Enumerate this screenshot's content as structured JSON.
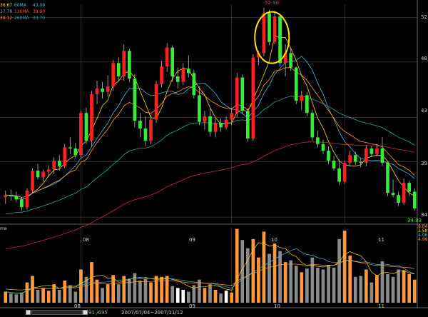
{
  "legend": {
    "price": [
      {
        "value": "36.67",
        "label": "60MA",
        "ma_value": "43.08",
        "color": "#ffd700",
        "ma_color": "#4fb3d9"
      },
      {
        "value": "37.78",
        "label": "130MA",
        "ma_value": "39.90",
        "color": "#4fb3d9",
        "ma_color": "#ff4040"
      },
      {
        "value": "39.12",
        "label": "260MA",
        "ma_value": "30.70",
        "color": "#ff9933",
        "ma_color": "#2aa0a0"
      }
    ]
  },
  "volume_label": "me",
  "volume_legend": [
    "8.04",
    "3.58",
    "4.06",
    "4.98"
  ],
  "peak_label": "52.90",
  "low_label": "34.83",
  "y_ticks": [
    {
      "value": 52,
      "text": "52"
    },
    {
      "value": 48,
      "text": "48"
    },
    {
      "value": 43,
      "text": "43"
    },
    {
      "value": 39,
      "text": "39"
    },
    {
      "value": 34,
      "text": "34"
    }
  ],
  "x_ticks": [
    {
      "text": "08"
    },
    {
      "text": "09"
    },
    {
      "text": "10"
    },
    {
      "text": "11"
    }
  ],
  "status": {
    "count": "91 /695",
    "range": "2007/07/04~2007/11/12"
  },
  "colors": {
    "up": "#ff2020",
    "down": "#33ee33",
    "vol_up": "#ff9a3c",
    "vol_down": "#8a8a8a",
    "vol_flat": "#ffffff",
    "ma5": "#ffd700",
    "ma20": "#4fb3d9",
    "ma60": "#ff9933",
    "ma130": "#2aa0a0",
    "ma260": "#c03030",
    "highlight": "#ffe600",
    "grid": "#444444"
  },
  "chart_data": {
    "type": "candlestick",
    "y_range": [
      33.5,
      53.2
    ],
    "candles": [
      [
        35.8,
        36.4,
        35.2,
        36.0
      ],
      [
        36.0,
        36.5,
        35.5,
        35.9
      ],
      [
        35.9,
        36.3,
        35.4,
        35.6
      ],
      [
        35.6,
        35.8,
        34.6,
        34.9
      ],
      [
        34.9,
        36.6,
        34.7,
        36.4
      ],
      [
        36.4,
        38.4,
        36.2,
        38.2
      ],
      [
        38.2,
        38.8,
        37.4,
        37.6
      ],
      [
        37.6,
        38.3,
        37.2,
        38.1
      ],
      [
        38.1,
        38.7,
        37.6,
        38.3
      ],
      [
        38.3,
        39.4,
        37.9,
        39.1
      ],
      [
        39.1,
        39.6,
        38.2,
        38.6
      ],
      [
        38.6,
        40.6,
        38.4,
        40.3
      ],
      [
        40.3,
        41.2,
        39.7,
        40.2
      ],
      [
        40.2,
        40.7,
        39.3,
        39.6
      ],
      [
        39.6,
        43.6,
        39.4,
        43.4
      ],
      [
        43.4,
        43.9,
        40.6,
        40.9
      ],
      [
        40.9,
        45.4,
        40.4,
        45.1
      ],
      [
        45.1,
        46.3,
        44.2,
        45.6
      ],
      [
        45.6,
        46.2,
        44.7,
        45.3
      ],
      [
        45.3,
        46.8,
        44.9,
        45.8
      ],
      [
        45.8,
        48.2,
        45.4,
        47.9
      ],
      [
        47.9,
        48.4,
        46.3,
        46.7
      ],
      [
        46.7,
        49.6,
        46.3,
        49.0
      ],
      [
        49.0,
        49.2,
        46.2,
        46.5
      ],
      [
        46.5,
        46.9,
        42.1,
        42.7
      ],
      [
        42.7,
        43.4,
        41.2,
        42.0
      ],
      [
        42.0,
        43.1,
        40.4,
        40.9
      ],
      [
        40.9,
        43.2,
        40.6,
        42.8
      ],
      [
        42.8,
        46.3,
        42.5,
        46.0
      ],
      [
        46.0,
        48.1,
        45.7,
        47.6
      ],
      [
        47.6,
        49.7,
        47.1,
        49.3
      ],
      [
        49.3,
        49.5,
        46.2,
        46.7
      ],
      [
        46.7,
        47.5,
        45.6,
        46.2
      ],
      [
        46.2,
        47.9,
        45.9,
        47.4
      ],
      [
        47.4,
        48.6,
        46.6,
        47.0
      ],
      [
        47.0,
        47.3,
        44.7,
        45.0
      ],
      [
        45.0,
        45.8,
        42.3,
        42.6
      ],
      [
        42.6,
        43.6,
        41.9,
        43.1
      ],
      [
        43.1,
        43.8,
        41.3,
        41.7
      ],
      [
        41.7,
        42.9,
        41.2,
        42.5
      ],
      [
        42.5,
        42.9,
        41.7,
        42.1
      ],
      [
        42.1,
        43.1,
        41.9,
        42.8
      ],
      [
        42.8,
        43.9,
        42.3,
        43.4
      ],
      [
        43.4,
        47.0,
        43.0,
        46.6
      ],
      [
        46.6,
        46.9,
        43.3,
        43.6
      ],
      [
        43.6,
        43.8,
        40.8,
        41.1
      ],
      [
        41.1,
        48.7,
        40.9,
        48.4
      ],
      [
        48.4,
        49.0,
        47.7,
        48.8
      ],
      [
        48.8,
        52.9,
        48.5,
        52.4
      ],
      [
        52.4,
        52.7,
        49.5,
        49.8
      ],
      [
        49.8,
        52.6,
        49.6,
        52.1
      ],
      [
        52.1,
        52.3,
        47.6,
        47.9
      ],
      [
        47.9,
        49.6,
        46.7,
        48.8
      ],
      [
        48.8,
        49.3,
        47.2,
        47.5
      ],
      [
        47.5,
        47.6,
        44.2,
        44.5
      ],
      [
        44.5,
        45.4,
        43.7,
        45.0
      ],
      [
        45.0,
        45.3,
        43.1,
        43.4
      ],
      [
        43.4,
        43.7,
        40.9,
        41.2
      ],
      [
        41.2,
        41.8,
        40.3,
        40.6
      ],
      [
        40.6,
        41.0,
        39.7,
        40.0
      ],
      [
        40.0,
        40.4,
        38.8,
        39.1
      ],
      [
        39.1,
        39.5,
        38.2,
        38.4
      ],
      [
        38.4,
        39.2,
        36.9,
        37.2
      ],
      [
        37.2,
        39.1,
        37.0,
        38.9
      ],
      [
        38.9,
        40.0,
        38.6,
        39.6
      ],
      [
        39.6,
        39.9,
        38.7,
        39.0
      ],
      [
        39.0,
        39.3,
        38.5,
        38.9
      ],
      [
        38.9,
        40.5,
        38.6,
        40.2
      ],
      [
        40.2,
        40.4,
        39.4,
        39.7
      ],
      [
        39.7,
        40.6,
        39.5,
        40.2
      ],
      [
        40.2,
        41.2,
        38.6,
        38.9
      ],
      [
        38.9,
        39.0,
        35.9,
        36.2
      ],
      [
        36.2,
        37.4,
        35.8,
        36.0
      ],
      [
        36.0,
        36.3,
        35.0,
        35.3
      ],
      [
        35.3,
        37.5,
        35.1,
        37.1
      ],
      [
        37.1,
        37.3,
        35.9,
        36.3
      ],
      [
        36.3,
        36.6,
        34.6,
        34.8
      ]
    ],
    "volume_range": [
      0,
      8.2
    ],
    "volume": [
      [
        1.2,
        "u"
      ],
      [
        1.0,
        "d"
      ],
      [
        0.9,
        "d"
      ],
      [
        1.1,
        "d"
      ],
      [
        2.2,
        "u"
      ],
      [
        2.9,
        "u"
      ],
      [
        1.4,
        "d"
      ],
      [
        1.6,
        "u"
      ],
      [
        1.3,
        "u"
      ],
      [
        2.0,
        "u"
      ],
      [
        1.4,
        "d"
      ],
      [
        2.4,
        "u"
      ],
      [
        1.9,
        "d"
      ],
      [
        1.2,
        "d"
      ],
      [
        3.6,
        "u"
      ],
      [
        2.8,
        "d"
      ],
      [
        4.4,
        "u"
      ],
      [
        2.5,
        "u"
      ],
      [
        1.6,
        "d"
      ],
      [
        2.0,
        "u"
      ],
      [
        3.0,
        "u"
      ],
      [
        2.0,
        "d"
      ],
      [
        2.9,
        "u"
      ],
      [
        2.6,
        "d"
      ],
      [
        3.2,
        "d"
      ],
      [
        2.4,
        "d"
      ],
      [
        2.6,
        "d"
      ],
      [
        2.2,
        "u"
      ],
      [
        2.9,
        "u"
      ],
      [
        2.8,
        "u"
      ],
      [
        2.9,
        "u"
      ],
      [
        1.8,
        "d"
      ],
      [
        1.6,
        "f"
      ],
      [
        1.4,
        "f"
      ],
      [
        1.2,
        "d"
      ],
      [
        1.9,
        "d"
      ],
      [
        2.5,
        "d"
      ],
      [
        1.6,
        "u"
      ],
      [
        2.0,
        "d"
      ],
      [
        1.4,
        "u"
      ],
      [
        1.0,
        "d"
      ],
      [
        1.3,
        "f"
      ],
      [
        1.1,
        "u"
      ],
      [
        8.0,
        "u"
      ],
      [
        6.8,
        "d"
      ],
      [
        5.9,
        "d"
      ],
      [
        6.9,
        "u"
      ],
      [
        4.9,
        "u"
      ],
      [
        7.7,
        "u"
      ],
      [
        5.3,
        "d"
      ],
      [
        6.4,
        "u"
      ],
      [
        5.6,
        "d"
      ],
      [
        4.4,
        "u"
      ],
      [
        4.6,
        "d"
      ],
      [
        4.0,
        "d"
      ],
      [
        3.3,
        "u"
      ],
      [
        3.7,
        "d"
      ],
      [
        4.9,
        "d"
      ],
      [
        3.8,
        "d"
      ],
      [
        3.6,
        "d"
      ],
      [
        4.1,
        "d"
      ],
      [
        3.8,
        "d"
      ],
      [
        6.9,
        "d"
      ],
      [
        7.8,
        "u"
      ],
      [
        5.1,
        "u"
      ],
      [
        2.8,
        "d"
      ],
      [
        2.9,
        "d"
      ],
      [
        3.6,
        "u"
      ],
      [
        2.2,
        "d"
      ],
      [
        3.0,
        "u"
      ],
      [
        4.5,
        "d"
      ],
      [
        3.1,
        "d"
      ],
      [
        2.8,
        "d"
      ],
      [
        3.6,
        "d"
      ],
      [
        3.5,
        "u"
      ],
      [
        3.1,
        "u"
      ],
      [
        2.5,
        "u"
      ]
    ],
    "x_tick_index": [
      14,
      42,
      63,
      83
    ],
    "highlight_index": [
      48,
      51
    ]
  }
}
